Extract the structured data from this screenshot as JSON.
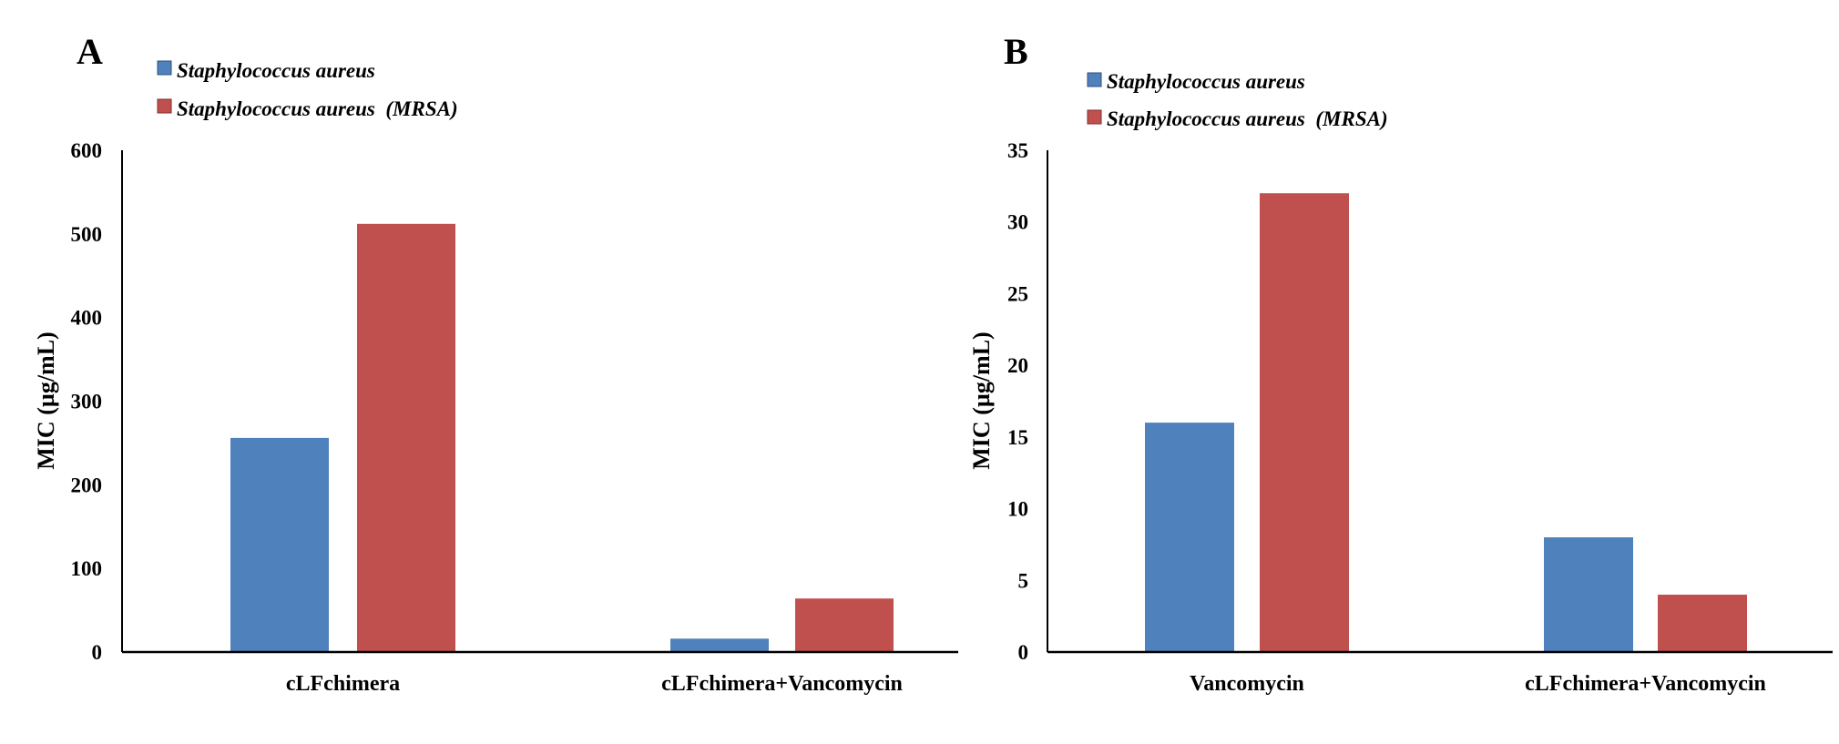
{
  "chart_data": [
    {
      "type": "bar",
      "panel": "A",
      "categories": [
        "cLFchimera",
        "cLFchimera+Vancomycin"
      ],
      "series": [
        {
          "name": "Staphylococcus aureus",
          "color": "#4f81bd",
          "values": [
            256,
            16
          ]
        },
        {
          "name": "Staphylococcus aureus  (MRSA)",
          "color": "#c0504d",
          "values": [
            512,
            64
          ]
        }
      ],
      "ylabel": "MIC (µg/mL)",
      "ylim": [
        0,
        600
      ],
      "yticks": [
        "0",
        "100",
        "200",
        "300",
        "400",
        "500",
        "600"
      ],
      "grid": false,
      "legend": "top-left"
    },
    {
      "type": "bar",
      "panel": "B",
      "categories": [
        "Vancomycin",
        "cLFchimera+Vancomycin"
      ],
      "series": [
        {
          "name": "Staphylococcus aureus",
          "color": "#4f81bd",
          "values": [
            16,
            8
          ]
        },
        {
          "name": "Staphylococcus aureus  (MRSA)",
          "color": "#c0504d",
          "values": [
            32,
            4
          ]
        }
      ],
      "ylabel": "MIC (µg/mL)",
      "ylim": [
        0,
        35
      ],
      "yticks": [
        "0",
        "5",
        "10",
        "15",
        "20",
        "25",
        "30",
        "35"
      ],
      "grid": false,
      "legend": "top-left"
    }
  ]
}
